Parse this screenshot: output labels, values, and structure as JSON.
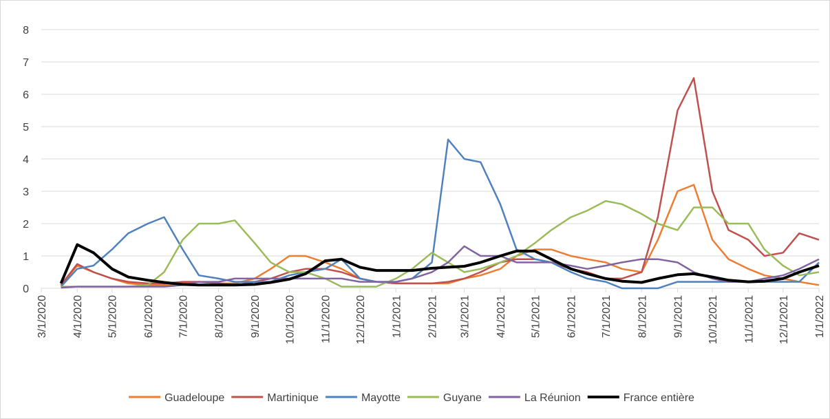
{
  "chart_data": {
    "type": "line",
    "x": [
      "3/18/2020",
      "4/1/2020",
      "4/15/2020",
      "5/1/2020",
      "5/15/2020",
      "6/1/2020",
      "6/15/2020",
      "7/1/2020",
      "7/15/2020",
      "8/1/2020",
      "8/15/2020",
      "9/1/2020",
      "9/15/2020",
      "10/1/2020",
      "10/15/2020",
      "11/1/2020",
      "11/15/2020",
      "12/1/2020",
      "12/15/2020",
      "1/1/2021",
      "1/15/2021",
      "2/1/2021",
      "2/15/2021",
      "3/1/2021",
      "3/15/2021",
      "4/1/2021",
      "4/15/2021",
      "5/1/2021",
      "5/15/2021",
      "6/1/2021",
      "6/15/2021",
      "7/1/2021",
      "7/15/2021",
      "8/1/2021",
      "8/15/2021",
      "9/1/2021",
      "9/15/2021",
      "10/1/2021",
      "10/15/2021",
      "11/1/2021",
      "11/15/2021",
      "12/1/2021",
      "12/15/2021",
      "1/1/2022"
    ],
    "series": [
      {
        "name": "Guadeloupe",
        "color": "#ed7d31",
        "values": [
          0.1,
          0.7,
          0.5,
          0.3,
          0.15,
          0.1,
          0.1,
          0.15,
          0.2,
          0.15,
          0.15,
          0.3,
          0.6,
          1.0,
          1.0,
          0.8,
          0.6,
          0.3,
          0.2,
          0.15,
          0.15,
          0.15,
          0.15,
          0.3,
          0.4,
          0.6,
          1.0,
          1.2,
          1.2,
          1.0,
          0.9,
          0.8,
          0.6,
          0.5,
          1.5,
          3.0,
          3.2,
          1.5,
          0.9,
          0.6,
          0.4,
          0.3,
          0.2,
          0.1
        ]
      },
      {
        "name": "Martinique",
        "color": "#c0504d",
        "values": [
          0.1,
          0.75,
          0.5,
          0.3,
          0.2,
          0.15,
          0.15,
          0.2,
          0.2,
          0.15,
          0.1,
          0.2,
          0.3,
          0.5,
          0.6,
          0.6,
          0.5,
          0.3,
          0.2,
          0.15,
          0.15,
          0.15,
          0.2,
          0.3,
          0.5,
          0.8,
          0.9,
          0.9,
          0.8,
          0.6,
          0.5,
          0.3,
          0.3,
          0.5,
          2.2,
          5.5,
          6.5,
          3.0,
          1.8,
          1.5,
          1.0,
          1.1,
          1.7,
          1.5
        ]
      },
      {
        "name": "Mayotte",
        "color": "#4f81bd",
        "values": [
          0.05,
          0.6,
          0.7,
          1.2,
          1.7,
          2.0,
          2.2,
          1.2,
          0.4,
          0.3,
          0.2,
          0.2,
          0.2,
          0.4,
          0.5,
          0.6,
          0.9,
          0.3,
          0.2,
          0.2,
          0.3,
          0.8,
          4.6,
          4.0,
          3.9,
          2.6,
          1.2,
          0.9,
          0.8,
          0.5,
          0.3,
          0.2,
          0.0,
          0.0,
          0.0,
          0.2,
          0.2,
          0.2,
          0.2,
          0.2,
          0.2,
          0.2,
          0.2,
          0.8
        ]
      },
      {
        "name": "Guyane",
        "color": "#9bbb59",
        "values": [
          0.05,
          0.05,
          0.05,
          0.05,
          0.05,
          0.1,
          0.5,
          1.5,
          2.0,
          2.0,
          2.1,
          1.4,
          0.8,
          0.5,
          0.5,
          0.3,
          0.05,
          0.05,
          0.05,
          0.3,
          0.6,
          1.1,
          0.8,
          0.5,
          0.6,
          0.8,
          1.0,
          1.4,
          1.8,
          2.2,
          2.4,
          2.7,
          2.6,
          2.3,
          2.0,
          1.8,
          2.5,
          2.5,
          2.0,
          2.0,
          1.2,
          0.7,
          0.4,
          0.5
        ]
      },
      {
        "name": "La Réunion",
        "color": "#8064a2",
        "values": [
          0.02,
          0.05,
          0.05,
          0.05,
          0.05,
          0.05,
          0.05,
          0.1,
          0.2,
          0.2,
          0.3,
          0.3,
          0.3,
          0.3,
          0.3,
          0.3,
          0.3,
          0.2,
          0.2,
          0.2,
          0.3,
          0.5,
          0.8,
          1.3,
          1.0,
          1.0,
          0.8,
          0.8,
          0.8,
          0.7,
          0.6,
          0.7,
          0.8,
          0.9,
          0.9,
          0.8,
          0.5,
          0.3,
          0.2,
          0.2,
          0.3,
          0.4,
          0.6,
          0.9
        ]
      },
      {
        "name": "France entière",
        "color": "#000000",
        "values": [
          0.15,
          1.35,
          1.1,
          0.6,
          0.35,
          0.25,
          0.18,
          0.12,
          0.1,
          0.1,
          0.1,
          0.12,
          0.18,
          0.28,
          0.45,
          0.85,
          0.9,
          0.65,
          0.55,
          0.55,
          0.55,
          0.62,
          0.65,
          0.68,
          0.8,
          1.0,
          1.15,
          1.15,
          0.9,
          0.6,
          0.45,
          0.3,
          0.22,
          0.18,
          0.3,
          0.42,
          0.45,
          0.35,
          0.25,
          0.2,
          0.22,
          0.3,
          0.5,
          0.7
        ]
      }
    ],
    "xlim": [
      "3/1/2020",
      "1/1/2022"
    ],
    "xticks": [
      "3/1/2020",
      "4/1/2020",
      "5/1/2020",
      "6/1/2020",
      "7/1/2020",
      "8/1/2020",
      "9/1/2020",
      "10/1/2020",
      "11/1/2020",
      "12/1/2020",
      "1/1/2021",
      "2/1/2021",
      "3/1/2021",
      "4/1/2021",
      "5/1/2021",
      "6/1/2021",
      "7/1/2021",
      "8/1/2021",
      "9/1/2021",
      "10/1/2021",
      "11/1/2021",
      "12/1/2021",
      "1/1/2022"
    ],
    "ylim": [
      0,
      8
    ],
    "yticks": [
      0,
      1,
      2,
      3,
      4,
      5,
      6,
      7,
      8
    ],
    "grid": true,
    "legend": "bottom"
  }
}
